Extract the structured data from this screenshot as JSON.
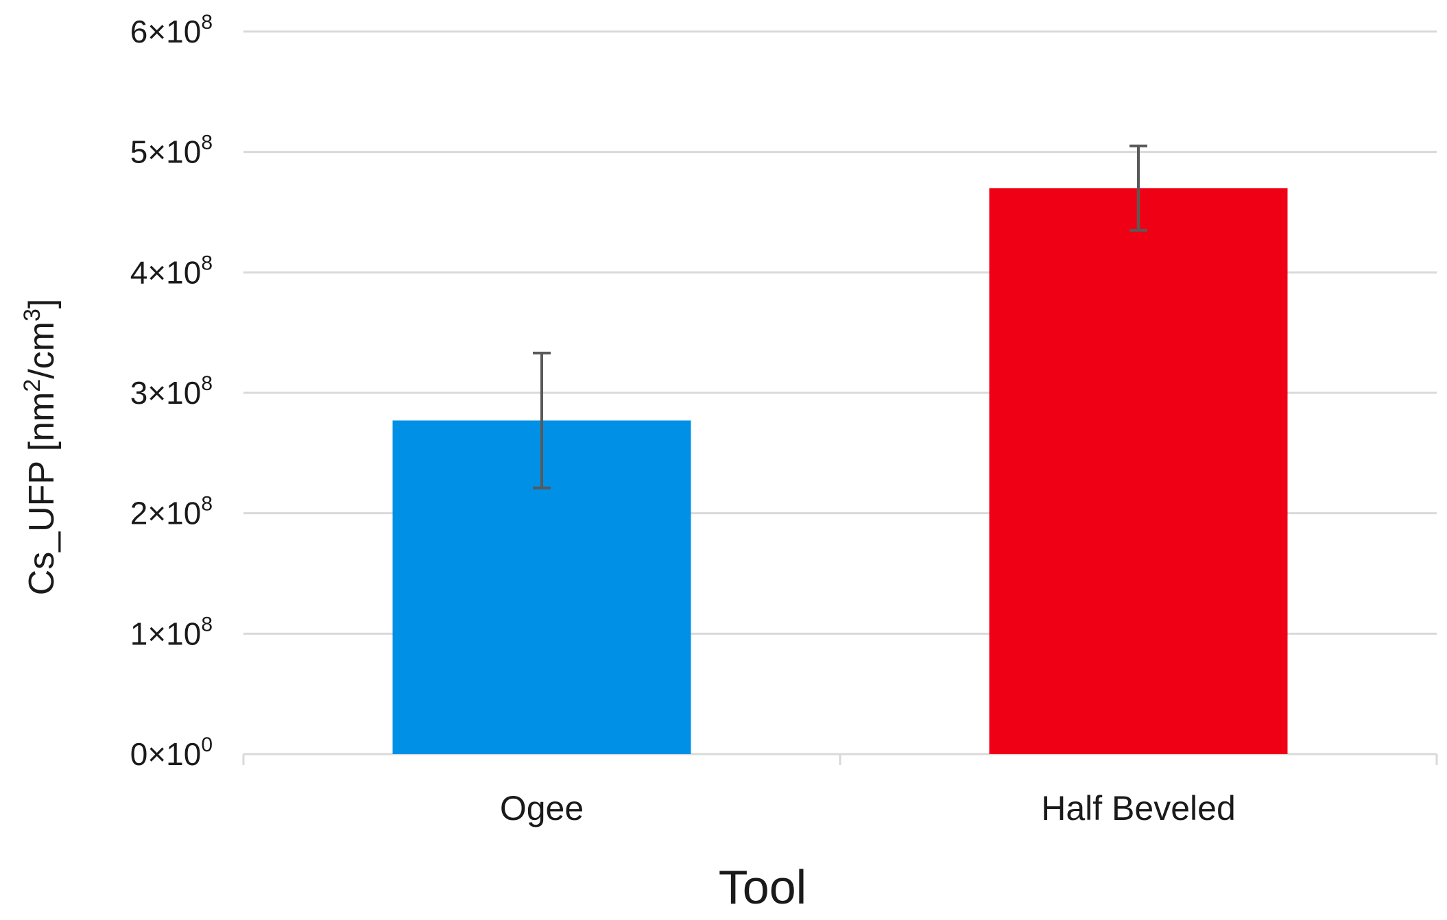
{
  "chart_data": {
    "type": "bar",
    "categories": [
      "Ogee",
      "Half Beveled"
    ],
    "values": [
      277000000,
      470000000
    ],
    "error": [
      56000000,
      35000000
    ],
    "colors": [
      "#0090e6",
      "#f00014"
    ],
    "xlabel": "Tool",
    "ylabel_parts": {
      "prefix": "Cs_UFP [nm",
      "sup1": "2",
      "middle": "/cm",
      "sup2": "3",
      "suffix": "]"
    },
    "ylim": [
      0,
      600000000
    ],
    "yticks": [
      {
        "value": 0,
        "mantissa": "0",
        "times": "×10",
        "exp": "0"
      },
      {
        "value": 100000000,
        "mantissa": "1",
        "times": "×10",
        "exp": "8"
      },
      {
        "value": 200000000,
        "mantissa": "2",
        "times": "×10",
        "exp": "8"
      },
      {
        "value": 300000000,
        "mantissa": "3",
        "times": "×10",
        "exp": "8"
      },
      {
        "value": 400000000,
        "mantissa": "4",
        "times": "×10",
        "exp": "8"
      },
      {
        "value": 500000000,
        "mantissa": "5",
        "times": "×10",
        "exp": "8"
      },
      {
        "value": 600000000,
        "mantissa": "6",
        "times": "×10",
        "exp": "8"
      }
    ],
    "grid": true,
    "gridColor": "#d9d9d9",
    "errorColor": "#595959",
    "legend": "none"
  }
}
